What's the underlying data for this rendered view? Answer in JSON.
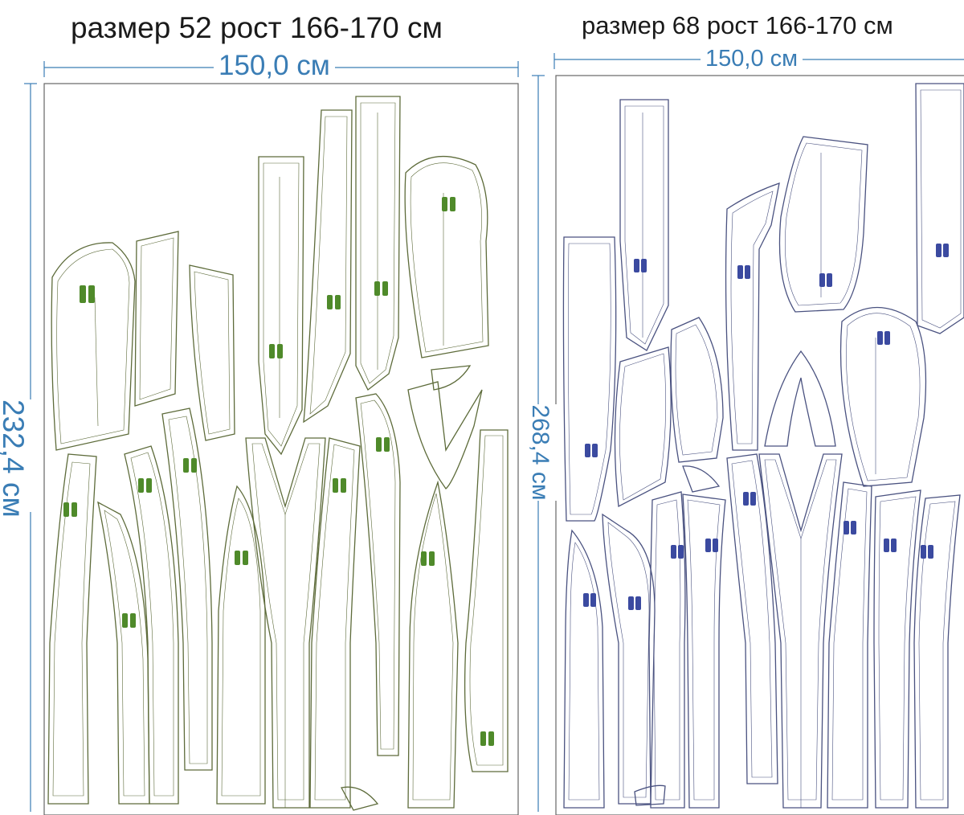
{
  "layouts": [
    {
      "title": "размер 52 рост 166-170 см",
      "width_label": "150,0 см",
      "height_label": "232,4 см",
      "piece_color": "#5d6b3a",
      "figure_color": "#4f8a2a"
    },
    {
      "title": "размер 68 рост 166-170 см",
      "width_label": "150,0 см",
      "height_label": "268,4 см",
      "piece_color": "#4a5280",
      "figure_color": "#3b4aa0"
    }
  ],
  "colors": {
    "dimension": "#3a7db5",
    "frame": "#555555"
  }
}
